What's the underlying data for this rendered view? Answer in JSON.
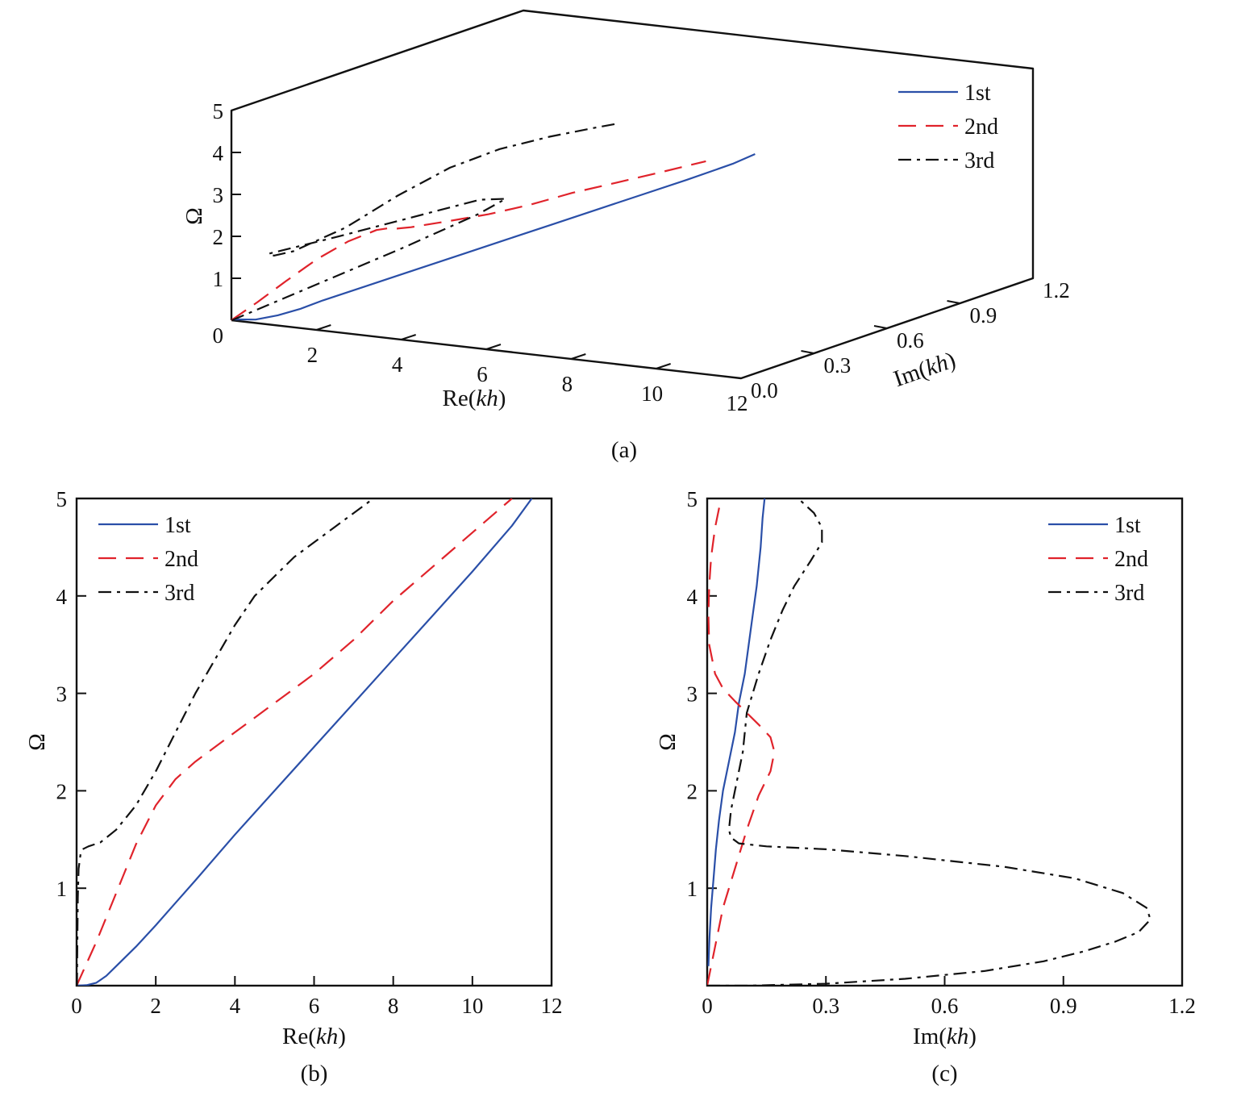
{
  "chart_data": [
    {
      "panel": "a",
      "type": "line",
      "projection": "3d",
      "caption": "(a)",
      "xlabel": "Re(kh)",
      "ylabel": "Im(kh)",
      "zlabel": "Ω",
      "xlim": [
        0,
        12
      ],
      "ylim": [
        0,
        1.2
      ],
      "zlim": [
        0,
        5
      ],
      "x_ticks": [
        "2",
        "4",
        "6",
        "8",
        "10",
        "12"
      ],
      "y_ticks": [
        "0.0",
        "0.3",
        "0.6",
        "0.9",
        "1.2"
      ],
      "z_ticks": [
        "0",
        "1",
        "2",
        "3",
        "4",
        "5"
      ],
      "legend_position": "top-right",
      "series": [
        {
          "name": "1st",
          "color": "#2a4fa8",
          "dash": "solid",
          "re": [
            0,
            0.5,
            1,
            1.5,
            2,
            3,
            4,
            5,
            6,
            7,
            8,
            9,
            10,
            11,
            11.5
          ],
          "im": [
            0.01,
            0.012,
            0.016,
            0.02,
            0.027,
            0.04,
            0.055,
            0.07,
            0.08,
            0.095,
            0.105,
            0.115,
            0.125,
            0.14,
            0.145
          ],
          "omega": [
            0,
            0.05,
            0.2,
            0.4,
            0.65,
            1.1,
            1.55,
            2.0,
            2.45,
            2.9,
            3.35,
            3.8,
            4.25,
            4.72,
            5.0
          ]
        },
        {
          "name": "2nd",
          "color": "#e0232b",
          "dash": "dashed",
          "re": [
            0,
            0.5,
            1,
            1.5,
            2,
            2.5,
            3,
            3.5,
            4,
            5,
            6,
            7,
            8,
            9,
            10,
            11
          ],
          "im": [
            0,
            0.02,
            0.05,
            0.09,
            0.13,
            0.16,
            0.12,
            0.07,
            0.04,
            0.02,
            0.01,
            0.005,
            0.005,
            0.005,
            0.01,
            0.03
          ],
          "omega": [
            0,
            0.45,
            0.95,
            1.45,
            1.85,
            2.12,
            2.3,
            2.45,
            2.6,
            2.9,
            3.2,
            3.55,
            3.95,
            4.3,
            4.65,
            5.0
          ]
        },
        {
          "name": "3rd",
          "color": "#111111",
          "dash": "dashdot",
          "re": [
            0.01,
            0.03,
            0.05,
            0.08,
            0.1,
            0.12,
            0.15,
            0.3,
            0.6,
            1,
            2,
            3,
            4,
            5,
            6,
            7,
            7.5
          ],
          "im": [
            0,
            0.3,
            0.7,
            1.0,
            1.11,
            1.0,
            0.4,
            0.1,
            0.07,
            0.08,
            0.12,
            0.16,
            0.2,
            0.23,
            0.26,
            0.28,
            0.28
          ],
          "omega": [
            0,
            0.15,
            0.35,
            0.55,
            0.7,
            0.9,
            1.2,
            1.42,
            1.47,
            1.6,
            2.2,
            3.0,
            3.7,
            4.2,
            4.55,
            4.85,
            5.0
          ]
        }
      ]
    },
    {
      "panel": "b",
      "type": "line",
      "caption": "(b)",
      "xlabel": "Re(kh)",
      "ylabel": "Ω",
      "xlim": [
        0,
        12
      ],
      "ylim": [
        0,
        5
      ],
      "x_ticks": [
        0,
        2,
        4,
        6,
        8,
        10,
        12
      ],
      "y_ticks": [
        1,
        2,
        3,
        4,
        5
      ],
      "legend_position": "top-left",
      "series": [
        {
          "name": "1st",
          "color": "#2a4fa8",
          "dash": "solid",
          "x": [
            0,
            0.25,
            0.5,
            0.75,
            1,
            1.5,
            2,
            2.5,
            3,
            4,
            5,
            6,
            7,
            8,
            9,
            10,
            11,
            11.5
          ],
          "y": [
            0,
            0.005,
            0.03,
            0.1,
            0.2,
            0.4,
            0.62,
            0.85,
            1.08,
            1.55,
            2.0,
            2.45,
            2.9,
            3.35,
            3.8,
            4.25,
            4.72,
            5.0
          ]
        },
        {
          "name": "2nd",
          "color": "#e0232b",
          "dash": "dashed",
          "x": [
            0,
            0.5,
            1,
            1.5,
            2,
            2.5,
            3,
            3.5,
            4,
            5,
            6,
            7,
            8,
            9,
            10,
            11
          ],
          "y": [
            0,
            0.45,
            0.95,
            1.45,
            1.85,
            2.12,
            2.3,
            2.45,
            2.6,
            2.9,
            3.2,
            3.55,
            3.95,
            4.3,
            4.65,
            5.0
          ]
        },
        {
          "name": "3rd",
          "color": "#111111",
          "dash": "dashdot",
          "x": [
            0.01,
            0.02,
            0.03,
            0.05,
            0.1,
            0.15,
            0.3,
            0.6,
            1,
            1.5,
            2,
            2.5,
            3,
            3.5,
            4,
            4.5,
            5,
            5.5,
            6,
            6.5,
            7,
            7.5
          ],
          "y": [
            0,
            0.5,
            0.9,
            1.2,
            1.35,
            1.4,
            1.43,
            1.47,
            1.6,
            1.85,
            2.2,
            2.6,
            3.0,
            3.35,
            3.7,
            4.0,
            4.2,
            4.4,
            4.55,
            4.7,
            4.85,
            5.0
          ]
        }
      ]
    },
    {
      "panel": "c",
      "type": "line",
      "caption": "(c)",
      "xlabel": "Im(kh)",
      "ylabel": "Ω",
      "xlim": [
        0,
        1.2
      ],
      "ylim": [
        0,
        5
      ],
      "x_ticks": [
        "0",
        "0.3",
        "0.6",
        "0.9",
        "1.2"
      ],
      "x_tick_values": [
        0,
        0.3,
        0.6,
        0.9,
        1.2
      ],
      "y_ticks": [
        1,
        2,
        3,
        4,
        5
      ],
      "legend_position": "top-right",
      "series": [
        {
          "name": "1st",
          "color": "#2a4fa8",
          "dash": "solid",
          "x": [
            0.003,
            0.006,
            0.01,
            0.016,
            0.022,
            0.03,
            0.04,
            0.055,
            0.07,
            0.08,
            0.095,
            0.105,
            0.115,
            0.125,
            0.135,
            0.14,
            0.145
          ],
          "y": [
            0.2,
            0.5,
            0.8,
            1.1,
            1.4,
            1.7,
            2.0,
            2.3,
            2.6,
            2.9,
            3.2,
            3.5,
            3.8,
            4.1,
            4.5,
            4.8,
            5.0
          ]
        },
        {
          "name": "2nd",
          "color": "#e0232b",
          "dash": "dashed",
          "x": [
            0,
            0.02,
            0.04,
            0.07,
            0.1,
            0.13,
            0.16,
            0.17,
            0.16,
            0.13,
            0.1,
            0.07,
            0.04,
            0.02,
            0.005,
            0.003,
            0.005,
            0.01,
            0.02,
            0.035
          ],
          "y": [
            0,
            0.4,
            0.8,
            1.2,
            1.6,
            1.95,
            2.2,
            2.4,
            2.55,
            2.68,
            2.8,
            2.92,
            3.05,
            3.2,
            3.5,
            3.8,
            4.1,
            4.4,
            4.7,
            5.0
          ]
        },
        {
          "name": "3rd",
          "color": "#111111",
          "dash": "dashdot",
          "x": [
            0,
            0.1,
            0.3,
            0.5,
            0.7,
            0.85,
            0.95,
            1.03,
            1.09,
            1.12,
            1.11,
            1.05,
            0.93,
            0.75,
            0.5,
            0.3,
            0.15,
            0.08,
            0.06,
            0.055,
            0.06,
            0.07,
            0.09,
            0.1,
            0.13,
            0.16,
            0.19,
            0.22,
            0.26,
            0.29,
            0.29,
            0.27,
            0.23
          ],
          "y": [
            0,
            0.0,
            0.02,
            0.07,
            0.15,
            0.25,
            0.35,
            0.45,
            0.55,
            0.68,
            0.8,
            0.95,
            1.1,
            1.22,
            1.33,
            1.4,
            1.43,
            1.46,
            1.52,
            1.6,
            1.8,
            2.0,
            2.4,
            2.8,
            3.2,
            3.55,
            3.85,
            4.1,
            4.35,
            4.55,
            4.7,
            4.85,
            5.0
          ]
        }
      ]
    }
  ]
}
